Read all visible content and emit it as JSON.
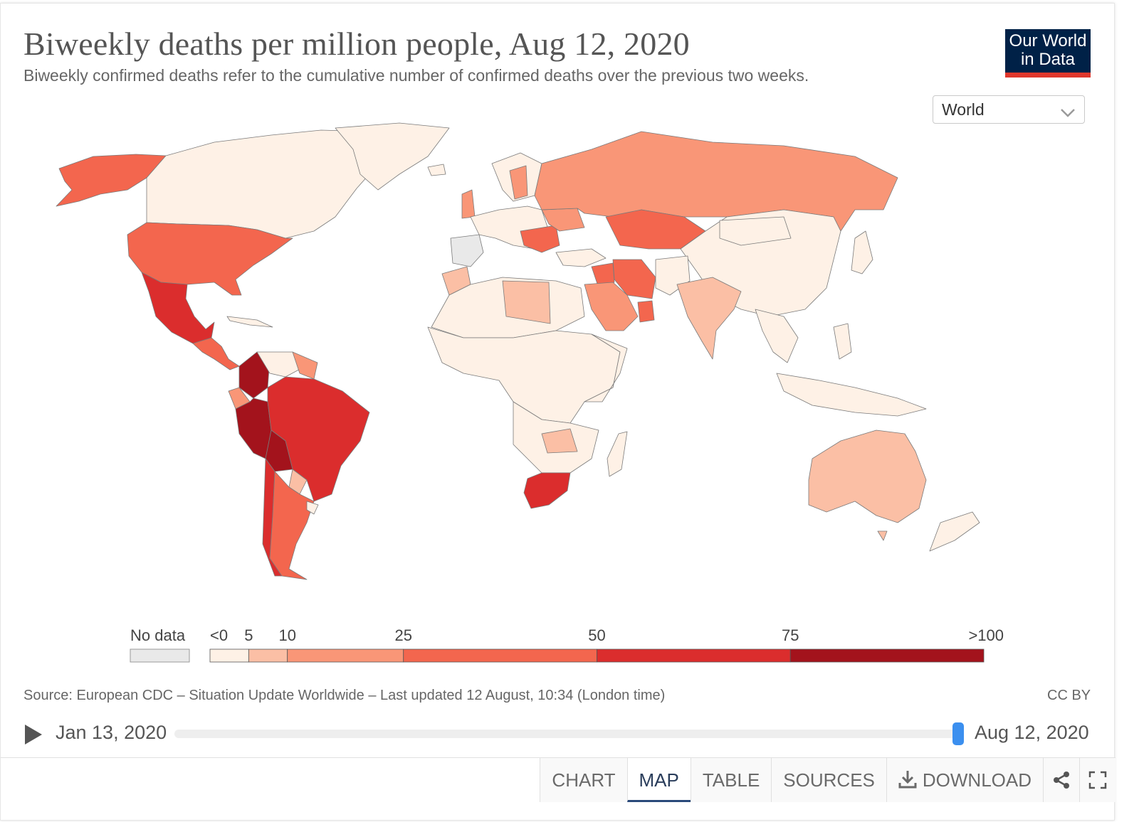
{
  "header": {
    "title": "Biweekly deaths per million people, Aug 12, 2020",
    "subtitle": "Biweekly confirmed deaths refer to the cumulative number of confirmed deaths over the previous two weeks.",
    "logo_line1": "Our World",
    "logo_line2": "in Data"
  },
  "region_select": {
    "value": "World"
  },
  "legend": {
    "no_data_label": "No data",
    "no_data_color": "#e9e9e9",
    "bins": [
      {
        "min_label": "<0",
        "max": 5,
        "color": "#fef1e6"
      },
      {
        "min_label": "5",
        "max": 10,
        "color": "#fbbfa5"
      },
      {
        "min_label": "10",
        "max": 25,
        "color": "#f99677"
      },
      {
        "min_label": "25",
        "max": 50,
        "color": "#f3664e"
      },
      {
        "min_label": "50",
        "max": 75,
        "color": "#db2d2d"
      },
      {
        "min_label": "75",
        "max": 100,
        "color": "#a3131c"
      }
    ],
    "last_label": ">100"
  },
  "footer": {
    "source": "Source: European CDC – Situation Update Worldwide – Last updated 12 August, 10:34 (London time)",
    "license": "CC BY"
  },
  "timeline": {
    "start_date": "Jan 13, 2020",
    "end_date": "Aug 12, 2020",
    "position": 1.0
  },
  "tabs": [
    {
      "label": "CHART",
      "active": false
    },
    {
      "label": "MAP",
      "active": true
    },
    {
      "label": "TABLE",
      "active": false
    },
    {
      "label": "SOURCES",
      "active": false
    },
    {
      "label": "DOWNLOAD",
      "active": false,
      "icon": "download-icon"
    }
  ],
  "icons": {
    "share": "share-icon",
    "fullscreen": "fullscreen-icon",
    "play": "play-icon"
  }
}
